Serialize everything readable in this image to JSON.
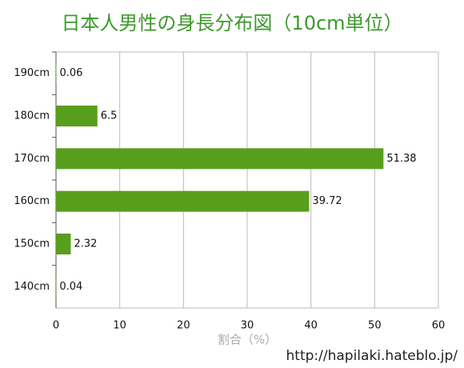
{
  "chart_data": {
    "type": "bar",
    "orientation": "horizontal",
    "title": "日本人男性の身長分布図（10cm単位）",
    "x_label": "割合（%）",
    "annotation": "http://hapilaki.hateblo.jp/",
    "categories": [
      "190cm",
      "180cm",
      "170cm",
      "160cm",
      "150cm",
      "140cm"
    ],
    "values": [
      0.06,
      6.5,
      51.38,
      39.72,
      2.32,
      0.04
    ],
    "color": "#589e1d",
    "xlim": [
      0,
      60
    ],
    "xticks": [
      0,
      10,
      20,
      30,
      40,
      50,
      60
    ],
    "grid": true
  }
}
